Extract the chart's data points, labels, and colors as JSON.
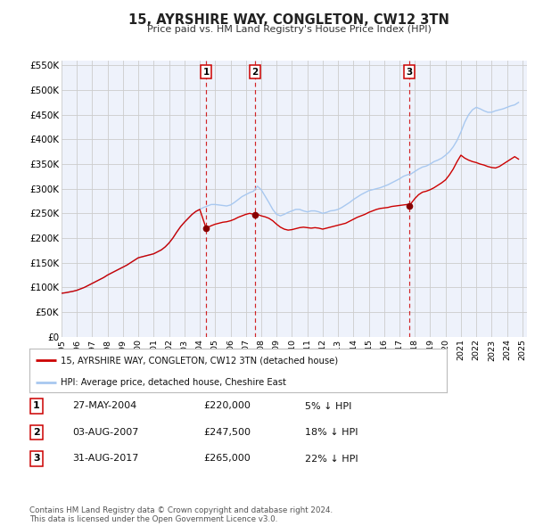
{
  "title": "15, AYRSHIRE WAY, CONGLETON, CW12 3TN",
  "subtitle": "Price paid vs. HM Land Registry's House Price Index (HPI)",
  "background_color": "#ffffff",
  "grid_color": "#cccccc",
  "plot_bg_color": "#eef2fb",
  "hpi_color": "#a8c8f0",
  "price_color": "#cc0000",
  "sale_marker_color": "#880000",
  "ylim": [
    0,
    560000
  ],
  "yticks": [
    0,
    50000,
    100000,
    150000,
    200000,
    250000,
    300000,
    350000,
    400000,
    450000,
    500000,
    550000
  ],
  "xlim_start": 1995.0,
  "xlim_end": 2025.3,
  "legend_label_price": "15, AYRSHIRE WAY, CONGLETON, CW12 3TN (detached house)",
  "legend_label_hpi": "HPI: Average price, detached house, Cheshire East",
  "sales": [
    {
      "num": 1,
      "date_label": "27-MAY-2004",
      "price": 220000,
      "pct": "5%",
      "x": 2004.41
    },
    {
      "num": 2,
      "date_label": "03-AUG-2007",
      "price": 247500,
      "pct": "18%",
      "x": 2007.59
    },
    {
      "num": 3,
      "date_label": "31-AUG-2017",
      "price": 265000,
      "pct": "22%",
      "x": 2017.66
    }
  ],
  "footer": "Contains HM Land Registry data © Crown copyright and database right 2024.\nThis data is licensed under the Open Government Licence v3.0.",
  "hpi_x": [
    1995.0,
    1995.25,
    1995.5,
    1995.75,
    1996.0,
    1996.25,
    1996.5,
    1996.75,
    1997.0,
    1997.25,
    1997.5,
    1997.75,
    1998.0,
    1998.25,
    1998.5,
    1998.75,
    1999.0,
    1999.25,
    1999.5,
    1999.75,
    2000.0,
    2000.25,
    2000.5,
    2000.75,
    2001.0,
    2001.25,
    2001.5,
    2001.75,
    2002.0,
    2002.25,
    2002.5,
    2002.75,
    2003.0,
    2003.25,
    2003.5,
    2003.75,
    2004.0,
    2004.25,
    2004.5,
    2004.75,
    2005.0,
    2005.25,
    2005.5,
    2005.75,
    2006.0,
    2006.25,
    2006.5,
    2006.75,
    2007.0,
    2007.25,
    2007.5,
    2007.75,
    2008.0,
    2008.25,
    2008.5,
    2008.75,
    2009.0,
    2009.25,
    2009.5,
    2009.75,
    2010.0,
    2010.25,
    2010.5,
    2010.75,
    2011.0,
    2011.25,
    2011.5,
    2011.75,
    2012.0,
    2012.25,
    2012.5,
    2012.75,
    2013.0,
    2013.25,
    2013.5,
    2013.75,
    2014.0,
    2014.25,
    2014.5,
    2014.75,
    2015.0,
    2015.25,
    2015.5,
    2015.75,
    2016.0,
    2016.25,
    2016.5,
    2016.75,
    2017.0,
    2017.25,
    2017.5,
    2017.75,
    2018.0,
    2018.25,
    2018.5,
    2018.75,
    2019.0,
    2019.25,
    2019.5,
    2019.75,
    2020.0,
    2020.25,
    2020.5,
    2020.75,
    2021.0,
    2021.25,
    2021.5,
    2021.75,
    2022.0,
    2022.25,
    2022.5,
    2022.75,
    2023.0,
    2023.25,
    2023.5,
    2023.75,
    2024.0,
    2024.25,
    2024.5,
    2024.75
  ],
  "hpi_y": [
    88000,
    89000,
    90500,
    92000,
    94000,
    97000,
    100000,
    104000,
    108000,
    112000,
    116000,
    120000,
    125000,
    129000,
    133000,
    137000,
    141000,
    145000,
    150000,
    155000,
    160000,
    162000,
    164000,
    166000,
    168000,
    172000,
    176000,
    182000,
    190000,
    200000,
    212000,
    223000,
    232000,
    240000,
    248000,
    254000,
    258000,
    262000,
    265000,
    268000,
    268000,
    267000,
    266000,
    265000,
    267000,
    272000,
    278000,
    284000,
    288000,
    292000,
    295000,
    305000,
    298000,
    285000,
    272000,
    258000,
    248000,
    245000,
    248000,
    252000,
    255000,
    258000,
    258000,
    255000,
    253000,
    255000,
    255000,
    253000,
    250000,
    252000,
    255000,
    256000,
    258000,
    262000,
    267000,
    272000,
    278000,
    283000,
    288000,
    292000,
    296000,
    298000,
    300000,
    302000,
    305000,
    308000,
    312000,
    316000,
    320000,
    325000,
    328000,
    330000,
    335000,
    340000,
    344000,
    346000,
    350000,
    355000,
    358000,
    362000,
    368000,
    375000,
    385000,
    398000,
    415000,
    435000,
    450000,
    460000,
    465000,
    462000,
    458000,
    455000,
    455000,
    458000,
    460000,
    462000,
    465000,
    468000,
    470000,
    475000
  ],
  "price_x": [
    1995.0,
    1995.25,
    1995.5,
    1995.75,
    1996.0,
    1996.25,
    1996.5,
    1996.75,
    1997.0,
    1997.25,
    1997.5,
    1997.75,
    1998.0,
    1998.25,
    1998.5,
    1998.75,
    1999.0,
    1999.25,
    1999.5,
    1999.75,
    2000.0,
    2000.25,
    2000.5,
    2000.75,
    2001.0,
    2001.25,
    2001.5,
    2001.75,
    2002.0,
    2002.25,
    2002.5,
    2002.75,
    2003.0,
    2003.25,
    2003.5,
    2003.75,
    2004.0,
    2004.41,
    2004.75,
    2005.0,
    2005.25,
    2005.5,
    2005.75,
    2006.0,
    2006.25,
    2006.5,
    2006.75,
    2007.0,
    2007.25,
    2007.59,
    2007.75,
    2008.0,
    2008.25,
    2008.5,
    2008.75,
    2009.0,
    2009.25,
    2009.5,
    2009.75,
    2010.0,
    2010.25,
    2010.5,
    2010.75,
    2011.0,
    2011.25,
    2011.5,
    2011.75,
    2012.0,
    2012.25,
    2012.5,
    2012.75,
    2013.0,
    2013.25,
    2013.5,
    2013.75,
    2014.0,
    2014.25,
    2014.5,
    2014.75,
    2015.0,
    2015.25,
    2015.5,
    2015.75,
    2016.0,
    2016.25,
    2016.5,
    2016.75,
    2017.0,
    2017.25,
    2017.5,
    2017.66,
    2017.75,
    2018.0,
    2018.25,
    2018.5,
    2018.75,
    2019.0,
    2019.25,
    2019.5,
    2019.75,
    2020.0,
    2020.25,
    2020.5,
    2020.75,
    2021.0,
    2021.25,
    2021.5,
    2021.75,
    2022.0,
    2022.25,
    2022.5,
    2022.75,
    2023.0,
    2023.25,
    2023.5,
    2023.75,
    2024.0,
    2024.25,
    2024.5,
    2024.75
  ],
  "price_y": [
    88000,
    89000,
    90500,
    92000,
    94000,
    97000,
    100000,
    104000,
    108000,
    112000,
    116000,
    120000,
    125000,
    129000,
    133000,
    137000,
    141000,
    145000,
    150000,
    155000,
    160000,
    162000,
    164000,
    166000,
    168000,
    172000,
    176000,
    182000,
    190000,
    200000,
    212000,
    223000,
    232000,
    240000,
    248000,
    254000,
    258000,
    220000,
    225000,
    228000,
    230000,
    232000,
    233000,
    235000,
    238000,
    242000,
    245000,
    248000,
    250000,
    247500,
    248000,
    245000,
    243000,
    240000,
    235000,
    228000,
    222000,
    218000,
    216000,
    217000,
    219000,
    221000,
    222000,
    221000,
    220000,
    221000,
    220000,
    218000,
    220000,
    222000,
    224000,
    226000,
    228000,
    230000,
    234000,
    238000,
    242000,
    245000,
    248000,
    252000,
    255000,
    258000,
    260000,
    261000,
    262000,
    264000,
    265000,
    266000,
    267000,
    268000,
    265000,
    270000,
    280000,
    288000,
    293000,
    295000,
    298000,
    302000,
    307000,
    312000,
    318000,
    328000,
    340000,
    355000,
    368000,
    362000,
    358000,
    355000,
    353000,
    350000,
    348000,
    345000,
    343000,
    342000,
    345000,
    350000,
    355000,
    360000,
    365000,
    360000
  ]
}
